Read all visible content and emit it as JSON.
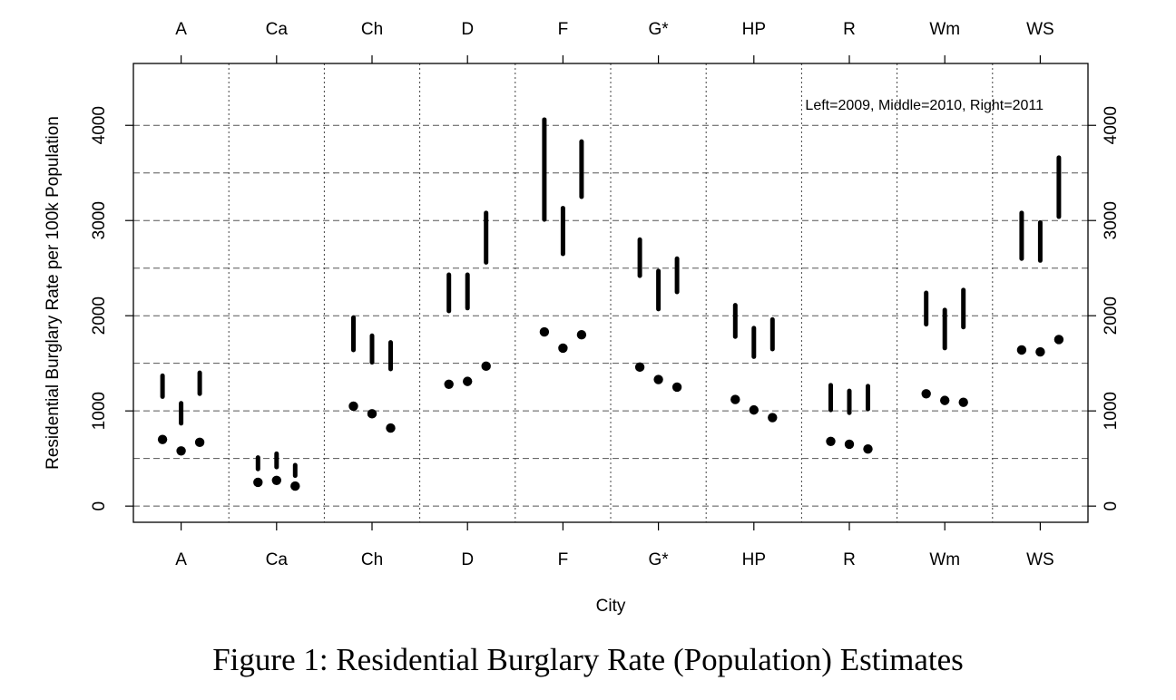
{
  "caption": "Figure 1: Residential Burglary Rate (Population) Estimates",
  "chart_data": {
    "type": "scatter",
    "title": "",
    "xlabel": "City",
    "ylabel": "Residential Burglary Rate per 100k Population",
    "annotation": "Left=2009, Middle=2010, Right=2011",
    "categories": [
      "A",
      "Ca",
      "Ch",
      "D",
      "F",
      "G*",
      "HP",
      "R",
      "Wm",
      "WS"
    ],
    "ylim": [
      -170,
      4650
    ],
    "yticks": [
      0,
      1000,
      2000,
      3000,
      4000
    ],
    "gridlines_dashed": [
      0,
      500,
      1000,
      1500,
      2000,
      2500,
      3000,
      3500,
      4000
    ],
    "years": [
      "2009",
      "2010",
      "2011"
    ],
    "points": [
      [
        700,
        580,
        670
      ],
      [
        250,
        270,
        210
      ],
      [
        1050,
        970,
        820
      ],
      [
        1280,
        1310,
        1470
      ],
      [
        1830,
        1660,
        1800
      ],
      [
        1460,
        1330,
        1250
      ],
      [
        1120,
        1010,
        930
      ],
      [
        680,
        650,
        600
      ],
      [
        1180,
        1110,
        1090
      ],
      [
        1640,
        1620,
        1750
      ]
    ],
    "intervals": [
      [
        [
          1150,
          1370
        ],
        [
          870,
          1080
        ],
        [
          1180,
          1400
        ]
      ],
      [
        [
          390,
          510
        ],
        [
          410,
          550
        ],
        [
          320,
          430
        ]
      ],
      [
        [
          1640,
          1980
        ],
        [
          1510,
          1790
        ],
        [
          1440,
          1720
        ]
      ],
      [
        [
          2050,
          2430
        ],
        [
          2080,
          2430
        ],
        [
          2560,
          3080
        ]
      ],
      [
        [
          3010,
          4060
        ],
        [
          2650,
          3130
        ],
        [
          3250,
          3830
        ]
      ],
      [
        [
          2420,
          2800
        ],
        [
          2070,
          2470
        ],
        [
          2250,
          2600
        ]
      ],
      [
        [
          1780,
          2110
        ],
        [
          1570,
          1870
        ],
        [
          1650,
          1960
        ]
      ],
      [
        [
          1010,
          1270
        ],
        [
          980,
          1210
        ],
        [
          1020,
          1260
        ]
      ],
      [
        [
          1910,
          2240
        ],
        [
          1660,
          2060
        ],
        [
          1880,
          2270
        ]
      ],
      [
        [
          2600,
          3080
        ],
        [
          2580,
          2980
        ],
        [
          3040,
          3660
        ]
      ]
    ]
  }
}
